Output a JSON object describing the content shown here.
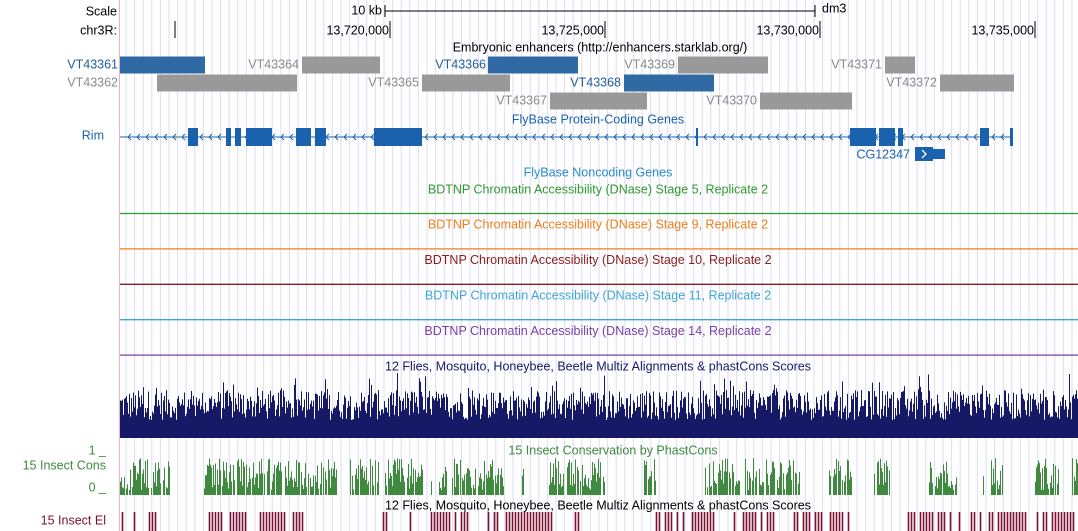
{
  "ruler": {
    "scale_label": "Scale",
    "scale_bar": "10 kb",
    "assembly": "dm3",
    "chrom": "chr3R:",
    "positions": [
      "13,720,000",
      "13,725,000",
      "13,730,000",
      "13,735,000"
    ]
  },
  "enhancers": {
    "title": "Embryonic enhancers (http://enhancers.starklab.org/)",
    "items": [
      {
        "name": "VT43361",
        "highlight": true
      },
      {
        "name": "VT43362",
        "highlight": false
      },
      {
        "name": "VT43364",
        "highlight": false
      },
      {
        "name": "VT43365",
        "highlight": false
      },
      {
        "name": "VT43366",
        "highlight": true
      },
      {
        "name": "VT43367",
        "highlight": false
      },
      {
        "name": "VT43368",
        "highlight": true
      },
      {
        "name": "VT43369",
        "highlight": false
      },
      {
        "name": "VT43370",
        "highlight": false
      },
      {
        "name": "VT43371",
        "highlight": false
      },
      {
        "name": "VT43372",
        "highlight": false
      }
    ]
  },
  "genes": {
    "title": "FlyBase Protein-Coding Genes",
    "items": [
      "Rim",
      "CG12347"
    ]
  },
  "noncoding": {
    "title": "FlyBase Noncoding Genes"
  },
  "dnase_tracks": [
    {
      "title": "BDTNP Chromatin Accessibility (DNase) Stage 5, Replicate 2",
      "color": "#2e9a2e"
    },
    {
      "title": "BDTNP Chromatin Accessibility (DNase) Stage 9, Replicate 2",
      "color": "#f07f1a"
    },
    {
      "title": "BDTNP Chromatin Accessibility (DNase) Stage 10, Replicate 2",
      "color": "#8c1c1c"
    },
    {
      "title": "BDTNP Chromatin Accessibility (DNase) Stage 11, Replicate 2",
      "color": "#3ea6d6"
    },
    {
      "title": "BDTNP Chromatin Accessibility (DNase) Stage 14, Replicate 2",
      "color": "#7a3fa6"
    }
  ],
  "multiz": {
    "title": "12 Flies, Mosquito, Honeybee, Beetle Multiz Alignments & phastCons Scores",
    "color": "#161a66"
  },
  "phastcons": {
    "title": "15 Insect Conservation by PhastCons",
    "label": "15 Insect Cons",
    "max": "1 _",
    "min": "0 _",
    "color": "#3f8a3f"
  },
  "elements": {
    "title": "12 Flies, Mosquito, Honeybee, Beetle Multiz Alignments & phastCons Scores",
    "label": "15 Insect El",
    "color": "#7c1030"
  }
}
